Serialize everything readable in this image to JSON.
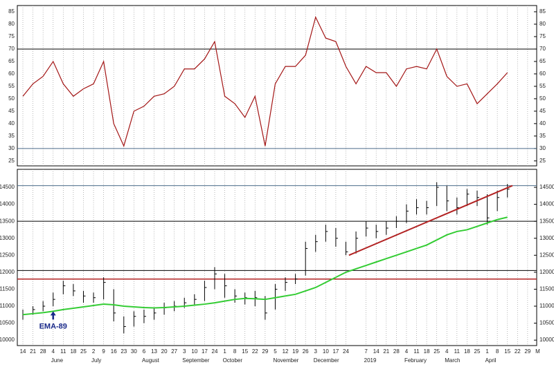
{
  "chart_data": [
    {
      "type": "line",
      "x": [
        0,
        1,
        2,
        3,
        4,
        5,
        6,
        7,
        8,
        9,
        10,
        11,
        12,
        13,
        14,
        15,
        16,
        17,
        18,
        19,
        20,
        21,
        22,
        23,
        24,
        25,
        26,
        27,
        28,
        29,
        30,
        31,
        32,
        33,
        34,
        35,
        36,
        37,
        38,
        39,
        40,
        41,
        42,
        43,
        44,
        45,
        46,
        47,
        48
      ],
      "values": [
        51,
        56,
        59,
        65,
        56,
        51,
        54,
        56,
        65,
        40,
        31,
        45,
        47,
        51,
        52,
        55,
        62,
        62,
        66,
        73,
        51,
        48,
        42.5,
        51,
        31,
        56,
        63,
        63,
        67.5,
        82.8,
        74.4,
        73,
        63,
        56,
        63,
        60.5,
        60.5,
        55,
        62,
        63,
        62,
        70,
        59,
        55,
        56,
        48,
        52,
        56,
        60.5
      ],
      "color": "#a31515",
      "xlim": [
        -0.55,
        50.9
      ],
      "ylim": [
        23,
        87.5
      ],
      "yticks": [
        25,
        30,
        35,
        40,
        45,
        50,
        55,
        60,
        65,
        70,
        75,
        80,
        85
      ],
      "hlines": [
        {
          "value": 70,
          "color": "#000000"
        },
        {
          "value": 30,
          "color": "#4a6b8a"
        }
      ]
    },
    {
      "type": "ohlc",
      "x": [
        0,
        1,
        2,
        3,
        4,
        5,
        6,
        7,
        8,
        9,
        10,
        11,
        12,
        13,
        14,
        15,
        16,
        17,
        18,
        19,
        20,
        21,
        22,
        23,
        24,
        25,
        26,
        27,
        28,
        29,
        30,
        31,
        32,
        33,
        34,
        35,
        36,
        37,
        38,
        39,
        40,
        41,
        42,
        43,
        44,
        45,
        46,
        47,
        48
      ],
      "high": [
        10900,
        11000,
        11150,
        11400,
        11750,
        11650,
        11450,
        11400,
        11850,
        11500,
        10700,
        10850,
        10900,
        10950,
        11100,
        11150,
        11250,
        11350,
        11750,
        12150,
        11950,
        11500,
        11400,
        11450,
        11300,
        11650,
        11850,
        11950,
        12900,
        13100,
        13400,
        13300,
        12900,
        13200,
        13500,
        13400,
        13500,
        13650,
        14000,
        14150,
        14100,
        14650,
        14550,
        14200,
        14450,
        14400,
        14300,
        14400,
        14600
      ],
      "low": [
        10600,
        10750,
        10850,
        11000,
        11350,
        11300,
        11100,
        11100,
        11200,
        10550,
        10200,
        10400,
        10500,
        10600,
        10750,
        10850,
        10950,
        11050,
        11150,
        11500,
        11250,
        11100,
        11050,
        11000,
        10600,
        10900,
        11450,
        11650,
        11900,
        12600,
        12900,
        12750,
        12500,
        12550,
        13050,
        13000,
        13100,
        13300,
        13450,
        13700,
        13700,
        13950,
        13800,
        13700,
        13950,
        13950,
        13400,
        13800,
        14200
      ],
      "close": [
        10750,
        10900,
        11000,
        11200,
        11600,
        11450,
        11300,
        11250,
        11700,
        10800,
        10400,
        10700,
        10700,
        10800,
        10950,
        11000,
        11100,
        11200,
        11550,
        11950,
        11600,
        11300,
        11250,
        11250,
        10800,
        11500,
        11700,
        11800,
        12700,
        12900,
        13200,
        13000,
        12600,
        13000,
        13300,
        13200,
        13300,
        13500,
        13800,
        13900,
        13900,
        14500,
        14100,
        13900,
        14300,
        14200,
        13600,
        14200,
        14450
      ],
      "color": "#000000",
      "ema": {
        "name": "EMA-89",
        "color": "#33cc33",
        "values": [
          10750,
          10780,
          10810,
          10850,
          10900,
          10940,
          10980,
          11020,
          11060,
          11040,
          11000,
          10980,
          10960,
          10950,
          10960,
          10980,
          11000,
          11030,
          11060,
          11100,
          11150,
          11200,
          11230,
          11220,
          11200,
          11250,
          11300,
          11350,
          11450,
          11550,
          11700,
          11850,
          12000,
          12100,
          12200,
          12300,
          12400,
          12500,
          12600,
          12700,
          12800,
          12950,
          13100,
          13200,
          13250,
          13350,
          13450,
          13550,
          13620
        ]
      },
      "trendline": {
        "x": [
          32.3,
          48.5
        ],
        "values": [
          12500,
          14550
        ],
        "color": "#b22222"
      },
      "hlines": [
        {
          "value": 14550,
          "color": "#4a6b8a"
        },
        {
          "value": 13500,
          "color": "#000000"
        },
        {
          "value": 12050,
          "color": "#000000"
        },
        {
          "value": 11800,
          "color": "#b22222"
        }
      ],
      "annotation": {
        "text": "EMA-89",
        "x": 3,
        "y": 10850,
        "color": "#1a2a8a"
      },
      "xlim": [
        -0.55,
        50.9
      ],
      "ylim": [
        9840,
        15030
      ],
      "yticks": [
        10000,
        10500,
        11000,
        11500,
        12000,
        12500,
        13000,
        13500,
        14000,
        14500
      ],
      "xticks": [
        {
          "value": 0,
          "label": "14"
        },
        {
          "value": 1,
          "label": "21"
        },
        {
          "value": 2,
          "label": "28"
        },
        {
          "value": 3,
          "label": "4"
        },
        {
          "value": 4,
          "label": "11"
        },
        {
          "value": 5,
          "label": "18"
        },
        {
          "value": 6,
          "label": "25"
        },
        {
          "value": 7,
          "label": "2"
        },
        {
          "value": 8,
          "label": "9"
        },
        {
          "value": 9,
          "label": "16"
        },
        {
          "value": 10,
          "label": "23"
        },
        {
          "value": 11,
          "label": "30"
        },
        {
          "value": 12,
          "label": "6"
        },
        {
          "value": 13,
          "label": "13"
        },
        {
          "value": 14,
          "label": "20"
        },
        {
          "value": 15,
          "label": "27"
        },
        {
          "value": 16,
          "label": "3"
        },
        {
          "value": 17,
          "label": "10"
        },
        {
          "value": 18,
          "label": "17"
        },
        {
          "value": 19,
          "label": "24"
        },
        {
          "value": 20,
          "label": "1"
        },
        {
          "value": 21,
          "label": "8"
        },
        {
          "value": 22,
          "label": "15"
        },
        {
          "value": 23,
          "label": "22"
        },
        {
          "value": 24,
          "label": "29"
        },
        {
          "value": 25,
          "label": "5"
        },
        {
          "value": 26,
          "label": "12"
        },
        {
          "value": 27,
          "label": "19"
        },
        {
          "value": 28,
          "label": "26"
        },
        {
          "value": 29,
          "label": "3"
        },
        {
          "value": 30,
          "label": "10"
        },
        {
          "value": 31,
          "label": "17"
        },
        {
          "value": 32,
          "label": "24"
        },
        {
          "value": 34,
          "label": "7"
        },
        {
          "value": 35,
          "label": "14"
        },
        {
          "value": 36,
          "label": "21"
        },
        {
          "value": 37,
          "label": "28"
        },
        {
          "value": 38,
          "label": "4"
        },
        {
          "value": 39,
          "label": "11"
        },
        {
          "value": 40,
          "label": "18"
        },
        {
          "value": 41,
          "label": "25"
        },
        {
          "value": 42,
          "label": "4"
        },
        {
          "value": 43,
          "label": "11"
        },
        {
          "value": 44,
          "label": "18"
        },
        {
          "value": 45,
          "label": "25"
        },
        {
          "value": 46,
          "label": "1"
        },
        {
          "value": 47,
          "label": "8"
        },
        {
          "value": 48,
          "label": "15"
        },
        {
          "value": 49,
          "label": "22"
        },
        {
          "value": 50,
          "label": "29"
        },
        {
          "value": 51,
          "label": "M"
        }
      ],
      "month_ticks": [
        {
          "value": 3,
          "label": "June"
        },
        {
          "value": 7,
          "label": "July"
        },
        {
          "value": 12,
          "label": "August"
        },
        {
          "value": 16,
          "label": "September"
        },
        {
          "value": 20,
          "label": "October"
        },
        {
          "value": 25,
          "label": "November"
        },
        {
          "value": 29,
          "label": "December"
        },
        {
          "value": 34,
          "label": "2019"
        },
        {
          "value": 38,
          "label": "February"
        },
        {
          "value": 42,
          "label": "March"
        },
        {
          "value": 46,
          "label": "April"
        }
      ]
    }
  ]
}
